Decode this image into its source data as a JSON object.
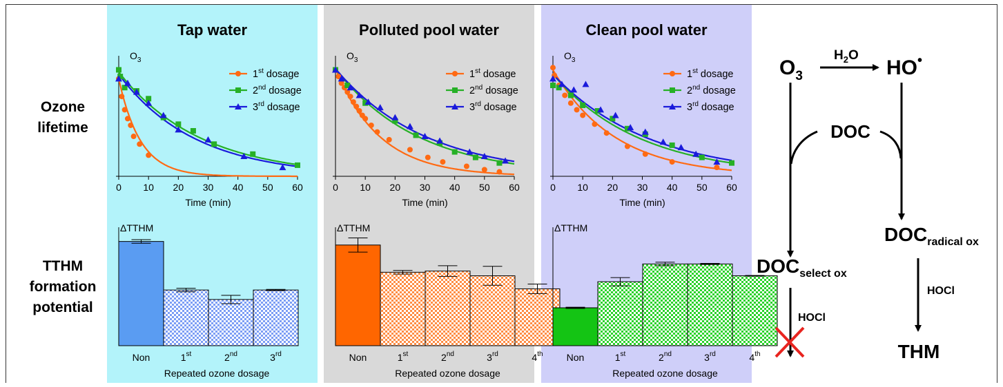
{
  "row_labels": {
    "ozone_lifetime": [
      "Ozone",
      "lifetime"
    ],
    "tthm": [
      "TTHM",
      "formation",
      "potential"
    ]
  },
  "panels": [
    {
      "title": "Tap water",
      "bg": "#b3f3fa"
    },
    {
      "title": "Polluted pool water",
      "bg": "#d9d9d9"
    },
    {
      "title": "Clean pool water",
      "bg": "#cfcff9"
    }
  ],
  "series_colors": {
    "1st": "#ff6a13",
    "2nd": "#26b026",
    "3rd": "#1a1adb"
  },
  "chart_data": [
    {
      "type": "scatter",
      "panel": "Tap water",
      "ylabel": "O3",
      "xlabel": "Time (min)",
      "xlim": [
        0,
        60
      ],
      "xticks": [
        0,
        10,
        20,
        30,
        40,
        50,
        60
      ],
      "ylim": [
        0,
        1.0
      ],
      "yaxis_ticks_shown": false,
      "legend": "top-right",
      "series": [
        {
          "name": "1st dosage",
          "sup": "st",
          "base": "1",
          "marker": "circle",
          "x": [
            0,
            1,
            2,
            3,
            4,
            5,
            7,
            10
          ],
          "y": [
            0.88,
            0.72,
            0.6,
            0.52,
            0.46,
            0.36,
            0.29,
            0.19
          ]
        },
        {
          "name": "2nd dosage",
          "sup": "nd",
          "base": "2",
          "marker": "square",
          "x": [
            0,
            0.5,
            2,
            6,
            10,
            15,
            20,
            25,
            32,
            45,
            60
          ],
          "y": [
            0.96,
            0.9,
            0.8,
            0.77,
            0.7,
            0.53,
            0.47,
            0.41,
            0.29,
            0.2,
            0.1
          ]
        },
        {
          "name": "3rd dosage",
          "sup": "rd",
          "base": "3",
          "marker": "triangle",
          "x": [
            0,
            3,
            6,
            10,
            15,
            20,
            30,
            42,
            55
          ],
          "y": [
            0.88,
            0.84,
            0.76,
            0.66,
            0.55,
            0.42,
            0.33,
            0.18,
            0.08
          ]
        }
      ],
      "fits": {
        "1st dosage": {
          "a": 0.88,
          "k": 0.138
        },
        "2nd dosage": {
          "a": 0.94,
          "k": 0.0365
        },
        "3rd dosage": {
          "a": 0.92,
          "k": 0.039
        }
      }
    },
    {
      "type": "bar",
      "panel": "Tap water",
      "ylabel": "ΔTTHM",
      "xlabel": "Repeated ozone dosage",
      "ylim": [
        0,
        100
      ],
      "categories": [
        {
          "base": "Non",
          "sup": ""
        },
        {
          "base": "1",
          "sup": "st"
        },
        {
          "base": "2",
          "sup": "nd"
        },
        {
          "base": "3",
          "sup": "rd"
        }
      ],
      "values": [
        88,
        47,
        39,
        47
      ],
      "errors": [
        1.5,
        1.5,
        3.5,
        0.5
      ],
      "colors": {
        "solid": "#5a9cf2",
        "check": "#7b9df5"
      }
    },
    {
      "type": "scatter",
      "panel": "Polluted pool water",
      "ylabel": "O3",
      "xlabel": "Time (min)",
      "xlim": [
        0,
        60
      ],
      "xticks": [
        0,
        10,
        20,
        30,
        40,
        50,
        60
      ],
      "ylim": [
        0,
        1.0
      ],
      "yaxis_ticks_shown": false,
      "legend": "top-right",
      "series": [
        {
          "name": "1st dosage",
          "sup": "st",
          "base": "1",
          "marker": "circle",
          "x": [
            0,
            1,
            2,
            3,
            4,
            5,
            6,
            7,
            8,
            9,
            10,
            12,
            14,
            18,
            25,
            31,
            36,
            44,
            50,
            55
          ],
          "y": [
            0.96,
            0.9,
            0.84,
            0.8,
            0.76,
            0.72,
            0.67,
            0.63,
            0.59,
            0.55,
            0.52,
            0.46,
            0.4,
            0.33,
            0.24,
            0.17,
            0.13,
            0.09,
            0.06,
            0.04
          ]
        },
        {
          "name": "2nd dosage",
          "sup": "nd",
          "base": "2",
          "marker": "square",
          "x": [
            0,
            4,
            10,
            20,
            27,
            35,
            40,
            47,
            55
          ],
          "y": [
            0.96,
            0.82,
            0.66,
            0.5,
            0.37,
            0.3,
            0.22,
            0.17,
            0.12
          ]
        },
        {
          "name": "3rd dosage",
          "sup": "rd",
          "base": "3",
          "marker": "triangle",
          "x": [
            0,
            2,
            5,
            8,
            11,
            15,
            20,
            25,
            30,
            35,
            45,
            50,
            57
          ],
          "y": [
            0.96,
            0.88,
            0.8,
            0.73,
            0.67,
            0.62,
            0.53,
            0.45,
            0.36,
            0.32,
            0.22,
            0.18,
            0.14
          ]
        }
      ],
      "fits": {
        "1st dosage": {
          "a": 0.97,
          "k": 0.067
        },
        "2nd dosage": {
          "a": 0.97,
          "k": 0.036
        },
        "3rd dosage": {
          "a": 0.97,
          "k": 0.033
        }
      }
    },
    {
      "type": "bar",
      "panel": "Polluted pool water",
      "ylabel": "ΔTTHM",
      "xlabel": "Repeated ozone dosage",
      "ylim": [
        0,
        100
      ],
      "categories": [
        {
          "base": "Non",
          "sup": ""
        },
        {
          "base": "1",
          "sup": "st"
        },
        {
          "base": "2",
          "sup": "nd"
        },
        {
          "base": "3",
          "sup": "rd"
        },
        {
          "base": "4",
          "sup": "th"
        }
      ],
      "values": [
        85,
        62,
        63,
        59,
        48
      ],
      "errors": [
        6,
        1.5,
        4.5,
        8,
        4
      ],
      "colors": {
        "solid": "#ff6600",
        "check": "#ff8c42"
      }
    },
    {
      "type": "scatter",
      "panel": "Clean pool water",
      "ylabel": "O3",
      "xlabel": "Time (min)",
      "xlim": [
        0,
        60
      ],
      "xticks": [
        0,
        10,
        20,
        30,
        40,
        50,
        60
      ],
      "ylim": [
        0,
        1.0
      ],
      "yaxis_ticks_shown": false,
      "legend": "top-right",
      "series": [
        {
          "name": "1st dosage",
          "sup": "st",
          "base": "1",
          "marker": "circle",
          "x": [
            0,
            0.5,
            2,
            4,
            6,
            8,
            10,
            14,
            18,
            25,
            31,
            40,
            55
          ],
          "y": [
            0.98,
            0.91,
            0.82,
            0.73,
            0.66,
            0.6,
            0.55,
            0.47,
            0.39,
            0.27,
            0.2,
            0.13,
            0.08
          ]
        },
        {
          "name": "2nd dosage",
          "sup": "nd",
          "base": "2",
          "marker": "square",
          "x": [
            0,
            2,
            6,
            10,
            15,
            20,
            25,
            31,
            40,
            50,
            60
          ],
          "y": [
            0.82,
            0.8,
            0.73,
            0.64,
            0.59,
            0.52,
            0.43,
            0.38,
            0.28,
            0.17,
            0.12
          ]
        },
        {
          "name": "3rd dosage",
          "sup": "rd",
          "base": "3",
          "marker": "triangle",
          "x": [
            0,
            3,
            7,
            11,
            16,
            21,
            26,
            31,
            37,
            43,
            48,
            55
          ],
          "y": [
            0.88,
            0.83,
            0.78,
            0.83,
            0.6,
            0.55,
            0.44,
            0.4,
            0.31,
            0.26,
            0.2,
            0.13
          ]
        }
      ],
      "fits": {
        "1st dosage": {
          "a": 0.96,
          "k": 0.048
        },
        "2nd dosage": {
          "a": 0.92,
          "k": 0.034
        },
        "3rd dosage": {
          "a": 0.92,
          "k": 0.031
        }
      }
    },
    {
      "type": "bar",
      "panel": "Clean pool water",
      "ylabel": "ΔTTHM",
      "xlabel": "Repeated ozone dosage",
      "ylim": [
        0,
        100
      ],
      "categories": [
        {
          "base": "Non",
          "sup": ""
        },
        {
          "base": "1",
          "sup": "st"
        },
        {
          "base": "2",
          "sup": "nd"
        },
        {
          "base": "3",
          "sup": "rd"
        },
        {
          "base": "4",
          "sup": "th"
        }
      ],
      "values": [
        32,
        54,
        69,
        69,
        59
      ],
      "errors": [
        0.5,
        3.5,
        1.5,
        0.5,
        0.3
      ],
      "colors": {
        "solid": "#14c414",
        "check": "#2ad22a"
      }
    }
  ],
  "diagram": {
    "o3": "O",
    "o3_sub": "3",
    "h2o": "H",
    "h2o_sub": "2",
    "h2o_tail": "O",
    "ho": "HO",
    "doc": "DOC",
    "doc_select": "DOC",
    "doc_select_sub": "select ox",
    "doc_radical": "DOC",
    "doc_radical_sub": "radical ox",
    "hocl_left": "HOCl",
    "hocl_right": "HOCl",
    "thm": "THM"
  }
}
